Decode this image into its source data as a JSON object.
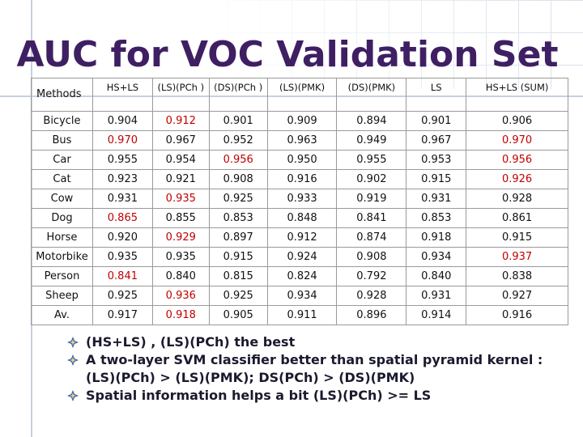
{
  "title": "AUC for VOC Validation Set",
  "table": {
    "headers": [
      "Methods",
      "HS+LS",
      "(LS)(PCh )",
      "(DS)(PCh )",
      "(LS)(PMK)",
      "(DS)(PMK)",
      "LS",
      "HS+LS (SUM)"
    ],
    "rows": [
      {
        "label": "Bicycle",
        "values": [
          "0.904",
          "0.912",
          "0.901",
          "0.909",
          "0.894",
          "0.901",
          "0.906"
        ],
        "highlight": [
          1
        ]
      },
      {
        "label": "Bus",
        "values": [
          "0.970",
          "0.967",
          "0.952",
          "0.963",
          "0.949",
          "0.967",
          "0.970"
        ],
        "highlight": [
          0,
          6
        ]
      },
      {
        "label": "Car",
        "values": [
          "0.955",
          "0.954",
          "0.956",
          "0.950",
          "0.955",
          "0.953",
          "0.956"
        ],
        "highlight": [
          2,
          6
        ]
      },
      {
        "label": "Cat",
        "values": [
          "0.923",
          "0.921",
          "0.908",
          "0.916",
          "0.902",
          "0.915",
          "0.926"
        ],
        "highlight": [
          6
        ]
      },
      {
        "label": "Cow",
        "values": [
          "0.931",
          "0.935",
          "0.925",
          "0.933",
          "0.919",
          "0.931",
          "0.928"
        ],
        "highlight": [
          1
        ]
      },
      {
        "label": "Dog",
        "values": [
          "0.865",
          "0.855",
          "0.853",
          "0.848",
          "0.841",
          "0.853",
          "0.861"
        ],
        "highlight": [
          0
        ]
      },
      {
        "label": "Horse",
        "values": [
          "0.920",
          "0.929",
          "0.897",
          "0.912",
          "0.874",
          "0.918",
          "0.915"
        ],
        "highlight": [
          1
        ]
      },
      {
        "label": "Motorbike",
        "values": [
          "0.935",
          "0.935",
          "0.915",
          "0.924",
          "0.908",
          "0.934",
          "0.937"
        ],
        "highlight": [
          6
        ]
      },
      {
        "label": "Person",
        "values": [
          "0.841",
          "0.840",
          "0.815",
          "0.824",
          "0.792",
          "0.840",
          "0.838"
        ],
        "highlight": [
          0
        ]
      },
      {
        "label": "Sheep",
        "values": [
          "0.925",
          "0.936",
          "0.925",
          "0.934",
          "0.928",
          "0.931",
          "0.927"
        ],
        "highlight": [
          1
        ]
      },
      {
        "label": "Av.",
        "values": [
          "0.917",
          "0.918",
          "0.905",
          "0.911",
          "0.896",
          "0.914",
          "0.916"
        ],
        "highlight": [
          1
        ],
        "label_highlight": true
      }
    ]
  },
  "bullets": [
    "(HS+LS) , (LS)(PCh)  the best",
    "A two-layer SVM classifier better than spatial pyramid kernel : (LS)(PCh) > (LS)(PMK); DS(PCh) > (DS)(PMK)",
    "Spatial information helps a bit  (LS)(PCh) >= LS"
  ],
  "colors": {
    "title": "#3f1f63",
    "highlight": "#c00000",
    "bullet_icon": "#3a5fa8"
  },
  "bullet_icon_name": "diamond-sparkle-icon"
}
